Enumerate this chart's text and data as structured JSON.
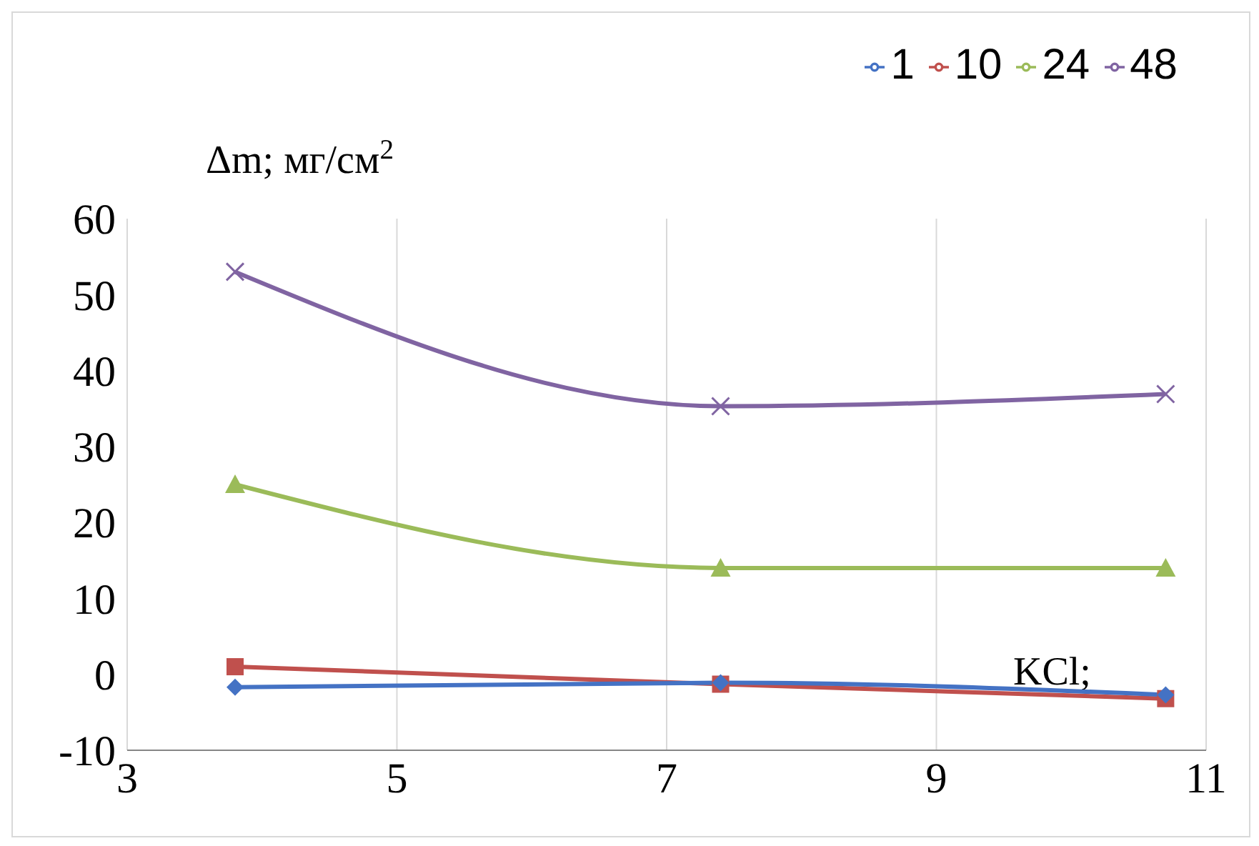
{
  "chart_data": {
    "type": "line",
    "ylabel": "Δm; мг/см$^{2}$",
    "xlabel": "KCl;",
    "xlim": [
      3,
      11
    ],
    "xticks": [
      3,
      5,
      7,
      9,
      11
    ],
    "ylim": [
      -10,
      60
    ],
    "yticks": [
      -10,
      0,
      10,
      20,
      30,
      40,
      50,
      60
    ],
    "grid": "x",
    "legend": "top right",
    "series": [
      {
        "name": "1",
        "color": "#4472c4",
        "marker": "diamond",
        "x": [
          3.8,
          7.4,
          10.7
        ],
        "values": [
          -1.7,
          -1.1,
          -2.7
        ]
      },
      {
        "name": "10",
        "color": "#c0504d",
        "marker": "square",
        "x": [
          3.8,
          7.4,
          10.7
        ],
        "values": [
          1,
          -1.3,
          -3.2
        ]
      },
      {
        "name": "24",
        "color": "#9bbb59",
        "marker": "triangle",
        "x": [
          3.8,
          7.4,
          10.7
        ],
        "values": [
          25,
          14,
          14
        ]
      },
      {
        "name": "48",
        "color": "#8064a2",
        "marker": "cross",
        "x": [
          3.8,
          7.4,
          10.7
        ],
        "values": [
          53,
          35.3,
          36.9
        ]
      }
    ]
  }
}
